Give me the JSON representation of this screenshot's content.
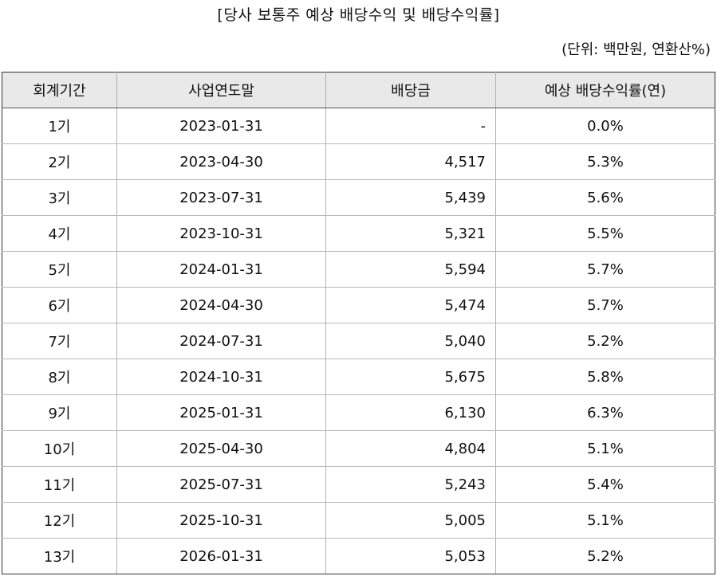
{
  "title": "[당사 보통주 예상 배당수익 및 배당수익률]",
  "unit": "(단위: 백만원, 연환산%)",
  "table": {
    "headers": [
      "회계기간",
      "사업연도말",
      "배당금",
      "예상 배당수익률(연)"
    ],
    "rows": [
      [
        "1기",
        "2023-01-31",
        "-",
        "0.0%"
      ],
      [
        "2기",
        "2023-04-30",
        "4,517",
        "5.3%"
      ],
      [
        "3기",
        "2023-07-31",
        "5,439",
        "5.6%"
      ],
      [
        "4기",
        "2023-10-31",
        "5,321",
        "5.5%"
      ],
      [
        "5기",
        "2024-01-31",
        "5,594",
        "5.7%"
      ],
      [
        "6기",
        "2024-04-30",
        "5,474",
        "5.7%"
      ],
      [
        "7기",
        "2024-07-31",
        "5,040",
        "5.2%"
      ],
      [
        "8기",
        "2024-10-31",
        "5,675",
        "5.8%"
      ],
      [
        "9기",
        "2025-01-31",
        "6,130",
        "6.3%"
      ],
      [
        "10기",
        "2025-04-30",
        "4,804",
        "5.1%"
      ],
      [
        "11기",
        "2025-07-31",
        "5,243",
        "5.4%"
      ],
      [
        "12기",
        "2025-10-31",
        "5,005",
        "5.1%"
      ],
      [
        "13기",
        "2026-01-31",
        "5,053",
        "5.2%"
      ]
    ]
  }
}
